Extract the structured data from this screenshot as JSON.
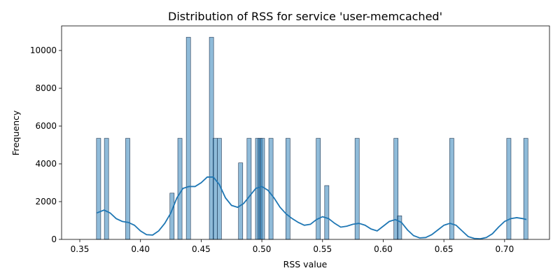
{
  "chart_data": {
    "type": "bar",
    "title": "Distribution of RSS for service 'user-memcached'",
    "xlabel": "RSS value",
    "ylabel": "Frequency",
    "xlim": [
      0.335,
      0.737
    ],
    "ylim": [
      0,
      11300
    ],
    "xticks": [
      0.35,
      0.4,
      0.45,
      0.5,
      0.55,
      0.6,
      0.65,
      0.7
    ],
    "xtick_labels": [
      "0.35",
      "0.40",
      "0.45",
      "0.50",
      "0.55",
      "0.60",
      "0.65",
      "0.70"
    ],
    "yticks": [
      0,
      2000,
      4000,
      6000,
      8000,
      10000
    ],
    "ytick_labels": [
      "0",
      "2000",
      "4000",
      "6000",
      "8000",
      "10000"
    ],
    "bin_width": 0.0035,
    "bars": [
      {
        "x": 0.3655,
        "count": 5350
      },
      {
        "x": 0.372,
        "count": 5350
      },
      {
        "x": 0.3895,
        "count": 5350
      },
      {
        "x": 0.426,
        "count": 2450
      },
      {
        "x": 0.4325,
        "count": 5350
      },
      {
        "x": 0.4395,
        "count": 10700
      },
      {
        "x": 0.4585,
        "count": 10700
      },
      {
        "x": 0.4615,
        "count": 5350
      },
      {
        "x": 0.465,
        "count": 5350
      },
      {
        "x": 0.4825,
        "count": 4050
      },
      {
        "x": 0.4895,
        "count": 5350
      },
      {
        "x": 0.4965,
        "count": 5350
      },
      {
        "x": 0.4985,
        "count": 5350
      },
      {
        "x": 0.5005,
        "count": 5350
      },
      {
        "x": 0.5075,
        "count": 5350
      },
      {
        "x": 0.5215,
        "count": 5350
      },
      {
        "x": 0.5465,
        "count": 5350
      },
      {
        "x": 0.5535,
        "count": 2850
      },
      {
        "x": 0.5785,
        "count": 5350
      },
      {
        "x": 0.6105,
        "count": 5350
      },
      {
        "x": 0.6135,
        "count": 1250
      },
      {
        "x": 0.6565,
        "count": 5350
      },
      {
        "x": 0.7035,
        "count": 5350
      },
      {
        "x": 0.7175,
        "count": 5350
      }
    ],
    "kde": {
      "x": [
        0.364,
        0.37,
        0.375,
        0.38,
        0.385,
        0.39,
        0.395,
        0.4,
        0.405,
        0.41,
        0.415,
        0.42,
        0.425,
        0.43,
        0.435,
        0.44,
        0.445,
        0.45,
        0.455,
        0.46,
        0.465,
        0.47,
        0.475,
        0.48,
        0.485,
        0.49,
        0.495,
        0.5,
        0.505,
        0.51,
        0.515,
        0.52,
        0.525,
        0.53,
        0.535,
        0.54,
        0.545,
        0.55,
        0.555,
        0.56,
        0.565,
        0.57,
        0.575,
        0.58,
        0.585,
        0.59,
        0.595,
        0.6,
        0.605,
        0.61,
        0.615,
        0.62,
        0.625,
        0.63,
        0.635,
        0.64,
        0.645,
        0.65,
        0.655,
        0.66,
        0.665,
        0.67,
        0.675,
        0.68,
        0.685,
        0.69,
        0.695,
        0.7,
        0.705,
        0.71,
        0.715,
        0.718
      ],
      "y": [
        1400,
        1550,
        1400,
        1100,
        950,
        900,
        750,
        450,
        250,
        230,
        450,
        850,
        1400,
        2200,
        2700,
        2800,
        2800,
        3000,
        3300,
        3300,
        2900,
        2200,
        1800,
        1700,
        1900,
        2300,
        2700,
        2800,
        2600,
        2200,
        1700,
        1350,
        1100,
        900,
        750,
        800,
        1050,
        1200,
        1100,
        850,
        650,
        700,
        800,
        850,
        750,
        550,
        450,
        700,
        950,
        1050,
        900,
        500,
        200,
        80,
        100,
        250,
        500,
        750,
        850,
        750,
        450,
        150,
        50,
        30,
        100,
        300,
        650,
        950,
        1100,
        1150,
        1100,
        1050
      ]
    }
  }
}
